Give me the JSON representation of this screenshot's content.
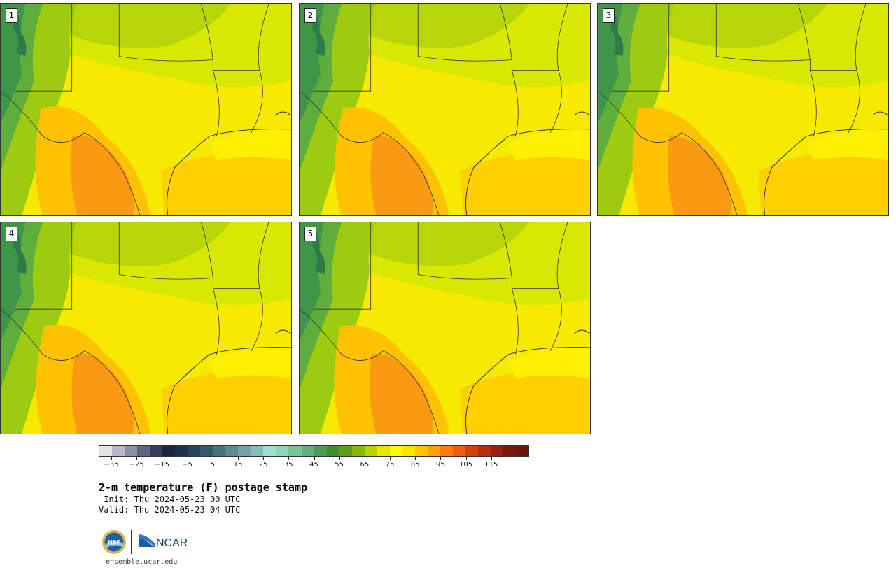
{
  "panels": [
    {
      "label": "1"
    },
    {
      "label": "2"
    },
    {
      "label": "3"
    },
    {
      "label": "4"
    },
    {
      "label": "5"
    }
  ],
  "colorbar": {
    "colors": [
      "#e3e4ea",
      "#b7b9cb",
      "#8b8ea6",
      "#5e6482",
      "#343b5c",
      "#1b2540",
      "#1c3050",
      "#24435e",
      "#33596e",
      "#45737f",
      "#5b8c92",
      "#72a3a5",
      "#87bcbb",
      "#9de0d3",
      "#8dd6b3",
      "#78c698",
      "#5fb17a",
      "#4a9e56",
      "#3f8f31",
      "#5d9f18",
      "#89b80d",
      "#bbd300",
      "#e3ea00",
      "#fffb00",
      "#ffe400",
      "#ffc400",
      "#ffa10e",
      "#fb7c10",
      "#ed5d0c",
      "#d4420c",
      "#b82d0d",
      "#992012",
      "#7a1810",
      "#651710"
    ],
    "ticks": [
      "−35",
      "−25",
      "−15",
      "−5",
      "5",
      "15",
      "25",
      "35",
      "45",
      "55",
      "65",
      "75",
      "85",
      "95",
      "105",
      "115"
    ]
  },
  "title": "2-m temperature (F) postage stamp",
  "init_text": " Init: Thu 2024-05-23 00 UTC",
  "valid_text": "Valid: Thu 2024-05-23 04 UTC",
  "logo": {
    "nsf": "NSF",
    "ncar": "NCAR"
  },
  "site": "ensemble.ucar.edu"
}
